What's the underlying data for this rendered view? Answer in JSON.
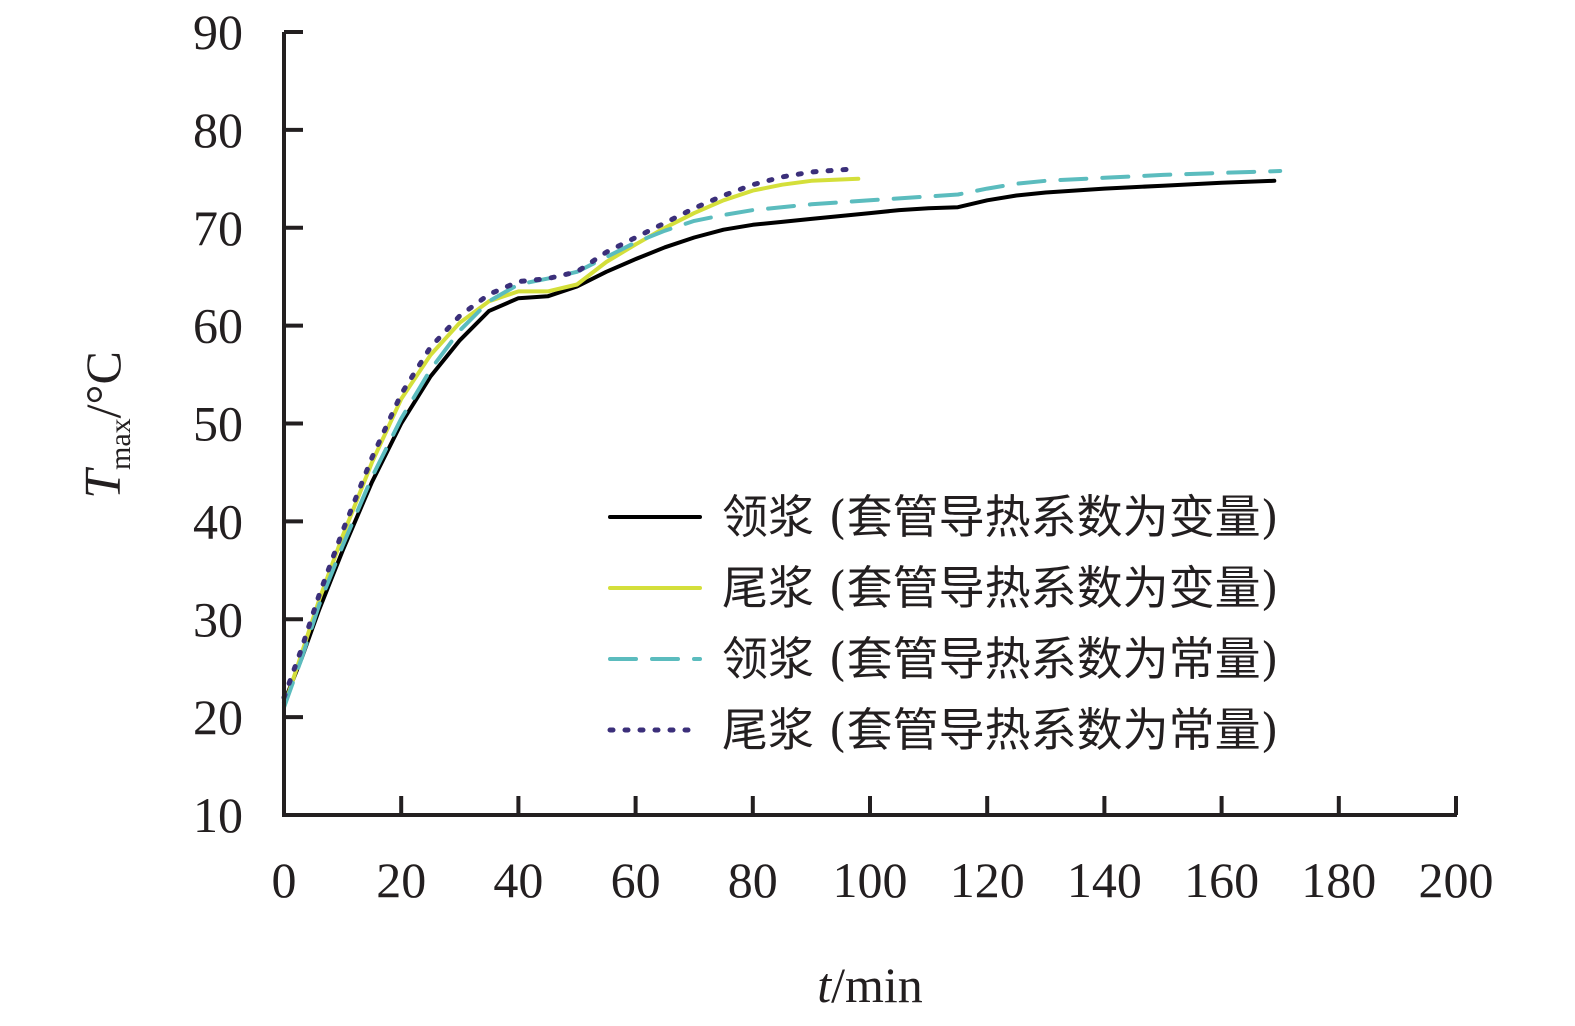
{
  "chart_data": {
    "type": "line",
    "x_label": {
      "symbol": "t",
      "unit": "/min"
    },
    "y_label": {
      "symbol": "T",
      "subscript": "max",
      "unit": "/°C"
    },
    "xlim": [
      0,
      200
    ],
    "ylim": [
      10,
      90
    ],
    "x_ticks": [
      "0",
      "20",
      "40",
      "60",
      "80",
      "100",
      "120",
      "140",
      "160",
      "180",
      "200"
    ],
    "y_ticks": [
      "10",
      "20",
      "30",
      "40",
      "50",
      "60",
      "70",
      "80",
      "90"
    ],
    "grid": false,
    "legend_position": "bottom-right",
    "series": [
      {
        "name": "领浆 (套管导热系数为变量)",
        "color": "#000000",
        "dash": "solid",
        "points": [
          [
            0,
            21.5
          ],
          [
            3,
            26
          ],
          [
            6,
            31
          ],
          [
            10,
            37
          ],
          [
            15,
            44
          ],
          [
            20,
            50
          ],
          [
            25,
            54.8
          ],
          [
            30,
            58.5
          ],
          [
            35,
            61.5
          ],
          [
            40,
            62.8
          ],
          [
            45,
            63
          ],
          [
            50,
            64
          ],
          [
            55,
            65.5
          ],
          [
            60,
            66.8
          ],
          [
            65,
            68
          ],
          [
            70,
            69
          ],
          [
            75,
            69.8
          ],
          [
            80,
            70.3
          ],
          [
            85,
            70.6
          ],
          [
            90,
            70.9
          ],
          [
            95,
            71.2
          ],
          [
            100,
            71.5
          ],
          [
            105,
            71.8
          ],
          [
            110,
            72
          ],
          [
            115,
            72.1
          ],
          [
            120,
            72.8
          ],
          [
            125,
            73.3
          ],
          [
            130,
            73.6
          ],
          [
            140,
            74
          ],
          [
            150,
            74.3
          ],
          [
            160,
            74.6
          ],
          [
            169,
            74.8
          ]
        ]
      },
      {
        "name": "尾浆 (套管导热系数为变量)",
        "color": "#d4df3a",
        "dash": "solid",
        "points": [
          [
            0,
            21
          ],
          [
            3,
            26.5
          ],
          [
            6,
            32
          ],
          [
            10,
            38.5
          ],
          [
            15,
            46
          ],
          [
            20,
            52.5
          ],
          [
            25,
            57
          ],
          [
            30,
            60.3
          ],
          [
            35,
            62.5
          ],
          [
            40,
            63.5
          ],
          [
            45,
            63.5
          ],
          [
            50,
            64.2
          ],
          [
            55,
            66.5
          ],
          [
            60,
            68.3
          ],
          [
            65,
            70
          ],
          [
            70,
            71.5
          ],
          [
            75,
            72.8
          ],
          [
            80,
            73.8
          ],
          [
            85,
            74.4
          ],
          [
            90,
            74.8
          ],
          [
            98,
            75
          ]
        ]
      },
      {
        "name": "领浆 (套管导热系数为常量)",
        "color": "#5bbcbe",
        "dash": "dashed",
        "points": [
          [
            0,
            21
          ],
          [
            3,
            26
          ],
          [
            6,
            31.5
          ],
          [
            10,
            37.5
          ],
          [
            15,
            44.5
          ],
          [
            20,
            50.5
          ],
          [
            25,
            55.5
          ],
          [
            30,
            59.5
          ],
          [
            35,
            62.5
          ],
          [
            40,
            64.2
          ],
          [
            45,
            64.8
          ],
          [
            50,
            65.5
          ],
          [
            55,
            67
          ],
          [
            60,
            68.5
          ],
          [
            65,
            69.7
          ],
          [
            70,
            70.7
          ],
          [
            75,
            71.3
          ],
          [
            80,
            71.8
          ],
          [
            90,
            72.4
          ],
          [
            100,
            72.8
          ],
          [
            110,
            73.2
          ],
          [
            115,
            73.4
          ],
          [
            120,
            74
          ],
          [
            125,
            74.5
          ],
          [
            130,
            74.8
          ],
          [
            140,
            75.1
          ],
          [
            150,
            75.4
          ],
          [
            160,
            75.6
          ],
          [
            170,
            75.8
          ]
        ]
      },
      {
        "name": "尾浆 (套管导热系数为常量)",
        "color": "#3b2f7a",
        "dash": "dotted",
        "points": [
          [
            0,
            22
          ],
          [
            3,
            27
          ],
          [
            6,
            32.5
          ],
          [
            10,
            39
          ],
          [
            15,
            46.5
          ],
          [
            20,
            53
          ],
          [
            25,
            57.8
          ],
          [
            30,
            61
          ],
          [
            35,
            63.2
          ],
          [
            40,
            64.5
          ],
          [
            45,
            64.8
          ],
          [
            50,
            65.5
          ],
          [
            55,
            67.5
          ],
          [
            60,
            69
          ],
          [
            65,
            70.5
          ],
          [
            70,
            72
          ],
          [
            75,
            73.3
          ],
          [
            80,
            74.4
          ],
          [
            85,
            75.2
          ],
          [
            90,
            75.7
          ],
          [
            97,
            76
          ]
        ]
      }
    ]
  }
}
